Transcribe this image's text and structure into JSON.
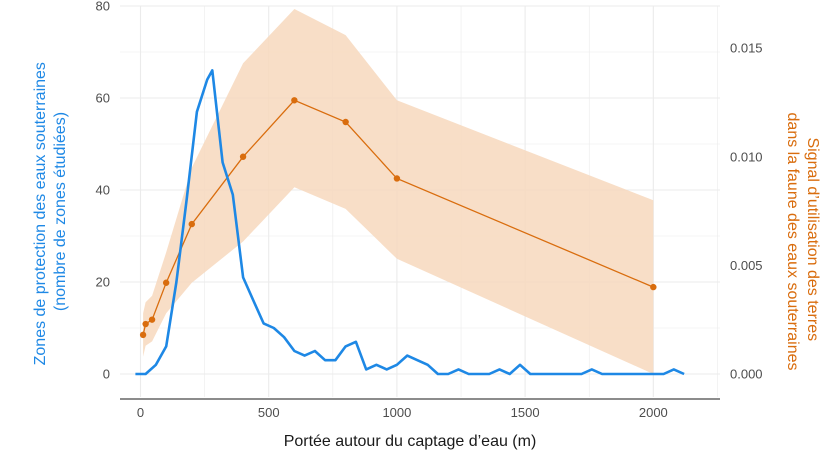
{
  "chart_data": {
    "type": "line",
    "xlabel": "Portée autour du captage d’eau (m)",
    "ylabel_left": [
      "Zones de protection des eaux souterraines",
      "(nombre de zones étudiées)"
    ],
    "ylabel_right": [
      "Signal d’utilisation des terres",
      "dans la faune des eaux souterraines"
    ],
    "xlim": [
      -80,
      2260
    ],
    "ylim_left": [
      -5,
      80
    ],
    "ylim_right": [
      -0.00106,
      0.01694
    ],
    "x_ticks": [
      0,
      500,
      1000,
      1500,
      2000
    ],
    "y_left_ticks": [
      0,
      20,
      40,
      60,
      80
    ],
    "y_right_ticks": [
      0,
      0.005,
      0.01,
      0.015
    ],
    "y_right_tick_labels": [
      "0.000",
      "0.005",
      "0.010",
      "0.015"
    ],
    "grid": true,
    "colors": {
      "zones": "#1e88e5",
      "signal": "#d96d0e",
      "band": "#f7d8bd",
      "grid": "#ebebeb",
      "left_label": "#1e88e5",
      "right_label": "#d96d0e"
    },
    "series": [
      {
        "axis": "left",
        "x": [
          -20,
          20,
          60,
          100,
          140,
          180,
          220,
          260,
          280,
          320,
          360,
          400,
          440,
          480,
          520,
          560,
          600,
          640,
          680,
          720,
          760,
          800,
          840,
          880,
          920,
          960,
          1000,
          1040,
          1080,
          1120,
          1160,
          1200,
          1240,
          1280,
          1320,
          1360,
          1400,
          1440,
          1480,
          1520,
          1560,
          1600,
          1640,
          1680,
          1720,
          1760,
          1800,
          1840,
          1880,
          1920,
          1960,
          2000,
          2040,
          2080,
          2120
        ],
        "values": [
          0,
          0,
          2,
          6,
          20,
          38,
          57,
          64,
          66,
          46,
          39,
          21,
          16,
          11,
          10,
          8,
          5,
          4,
          5,
          3,
          3,
          6,
          7,
          1,
          2,
          1,
          2,
          4,
          3,
          2,
          0,
          0,
          1,
          0,
          0,
          0,
          1,
          0,
          2,
          0,
          0,
          0,
          0,
          0,
          0,
          1,
          0,
          0,
          0,
          0,
          0,
          0,
          0,
          1,
          0
        ]
      },
      {
        "axis": "right",
        "x": [
          10,
          20,
          45,
          100,
          200,
          400,
          600,
          800,
          1000,
          2000
        ],
        "values": [
          0.0018,
          0.0023,
          0.0025,
          0.0042,
          0.0069,
          0.01,
          0.0126,
          0.0116,
          0.009,
          0.004
        ],
        "lower": [
          0.0008,
          0.0013,
          0.0015,
          0.0028,
          0.0042,
          0.0061,
          0.0086,
          0.0076,
          0.0053,
          0.0
        ],
        "upper": [
          0.0028,
          0.0033,
          0.0036,
          0.0056,
          0.0095,
          0.0143,
          0.0168,
          0.0156,
          0.0126,
          0.008
        ]
      }
    ]
  }
}
